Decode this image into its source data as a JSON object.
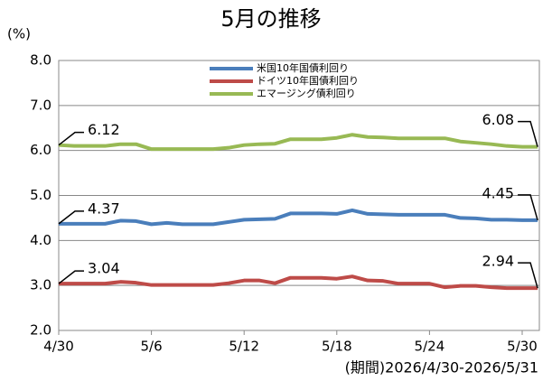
{
  "chart_data": {
    "type": "line",
    "title": "5月の推移",
    "y_label": "(%)",
    "footnote": "(期間)2026/4/30-2026/5/31",
    "categories": [
      "4/30",
      null,
      null,
      null,
      null,
      null,
      "5/6",
      null,
      null,
      null,
      null,
      null,
      "5/12",
      null,
      null,
      null,
      null,
      null,
      "5/18",
      null,
      null,
      null,
      null,
      null,
      "5/24",
      null,
      null,
      null,
      null,
      null,
      "5/30",
      null
    ],
    "series": [
      {
        "name": "米国10年国債利回り",
        "color": "#4a7ebb",
        "values": [
          4.37,
          4.37,
          4.37,
          4.37,
          4.44,
          4.43,
          4.36,
          4.39,
          4.36,
          4.36,
          4.36,
          4.41,
          4.46,
          4.47,
          4.48,
          4.6,
          4.6,
          4.6,
          4.59,
          4.67,
          4.59,
          4.58,
          4.57,
          4.57,
          4.57,
          4.57,
          4.5,
          4.49,
          4.46,
          4.46,
          4.45,
          4.45
        ]
      },
      {
        "name": "ドイツ10年国債利回り",
        "color": "#be4b48",
        "values": [
          3.04,
          3.04,
          3.04,
          3.04,
          3.08,
          3.06,
          3.01,
          3.01,
          3.01,
          3.01,
          3.01,
          3.05,
          3.11,
          3.11,
          3.05,
          3.17,
          3.17,
          3.17,
          3.15,
          3.2,
          3.11,
          3.1,
          3.04,
          3.04,
          3.04,
          2.96,
          2.99,
          2.99,
          2.96,
          2.94,
          2.94,
          2.94
        ]
      },
      {
        "name": "エマージング債利回り",
        "color": "#98b954",
        "values": [
          6.12,
          6.1,
          6.1,
          6.1,
          6.14,
          6.14,
          6.03,
          6.03,
          6.03,
          6.03,
          6.03,
          6.06,
          6.12,
          6.14,
          6.15,
          6.25,
          6.25,
          6.25,
          6.28,
          6.35,
          6.3,
          6.29,
          6.27,
          6.27,
          6.27,
          6.27,
          6.2,
          6.17,
          6.14,
          6.1,
          6.08,
          6.08
        ]
      }
    ],
    "ylim": [
      2,
      8
    ],
    "yticks": [
      {
        "value": 2,
        "label": "2.0"
      },
      {
        "value": 3,
        "label": "3.0"
      },
      {
        "value": 4,
        "label": "4.0"
      },
      {
        "value": 5,
        "label": "5.0"
      },
      {
        "value": 6,
        "label": "6.0"
      },
      {
        "value": 7,
        "label": "7.0"
      },
      {
        "value": 8,
        "label": "8.0"
      }
    ],
    "grid": true
  }
}
